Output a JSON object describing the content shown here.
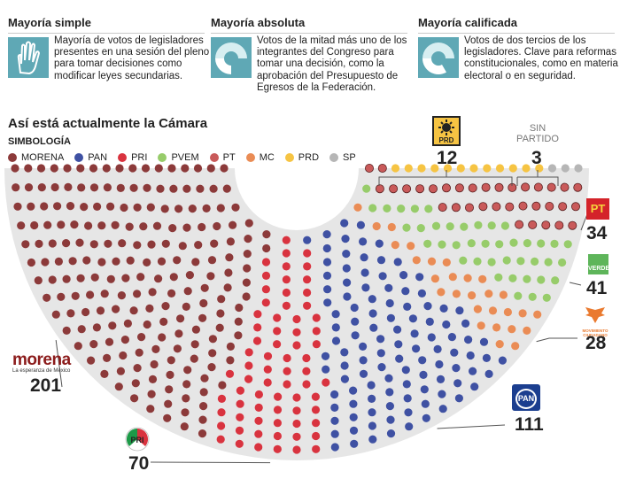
{
  "definitions": [
    {
      "title": "Mayoría simple",
      "text": "Mayoría de votos de legisladores presentes en una sesión del pleno para tomar decisiones como modificar leyes secundarias.",
      "icon": "raised-hand-icon"
    },
    {
      "title": "Mayoría absoluta",
      "text": "Votos de la mitad más uno de los integrantes del Congreso para tomar una decisión, como la aprobación del Presupuesto de Egresos de la Federación.",
      "icon": "half-circle-icon"
    },
    {
      "title": "Mayoría calificada",
      "text": "Votos de dos tercios de los legisladores. Clave para reformas constitucionales, como en materia electoral o en seguridad.",
      "icon": "two-thirds-circle-icon"
    }
  ],
  "chart_data": {
    "type": "parliament",
    "title": "Así está actualmente la Cámara",
    "legend_title": "SIMBOLOGÍA",
    "total_seats": 500,
    "series": [
      {
        "name": "MORENA",
        "values": [
          201
        ],
        "color": "#8c3a3a"
      },
      {
        "name": "PRI",
        "values": [
          70
        ],
        "color": "#d9333f"
      },
      {
        "name": "PAN",
        "values": [
          111
        ],
        "color": "#3f51a3"
      },
      {
        "name": "MC",
        "values": [
          28
        ],
        "color": "#ea8c55"
      },
      {
        "name": "PVEM",
        "values": [
          41
        ],
        "color": "#97cc6a"
      },
      {
        "name": "PT",
        "values": [
          34
        ],
        "color": "#c95a5a"
      },
      {
        "name": "PRD",
        "values": [
          12
        ],
        "color": "#f6c443"
      },
      {
        "name": "SP",
        "values": [
          3
        ],
        "color": "#b6b6b6"
      }
    ],
    "legend_order": [
      "MORENA",
      "PAN",
      "PRI",
      "PVEM",
      "PT",
      "MC",
      "PRD",
      "SP"
    ],
    "callouts": {
      "MORENA": {
        "count": "201",
        "logo_text": "morena",
        "logo_sub": "La esperanza de México"
      },
      "PRI": {
        "count": "70",
        "logo_text": "PRI"
      },
      "PAN": {
        "count": "111",
        "logo_text": "PAN"
      },
      "MC": {
        "count": "28",
        "logo_text": "MOVIMIENTO CIUDADANO"
      },
      "PVEM": {
        "count": "41",
        "logo_text": "VERDE"
      },
      "PT": {
        "count": "34",
        "logo_text": "PT"
      },
      "PRD": {
        "count": "12",
        "logo_text": "PRD"
      },
      "SP": {
        "count": "3",
        "label_lines": [
          "SIN",
          "PARTIDO"
        ]
      }
    }
  }
}
